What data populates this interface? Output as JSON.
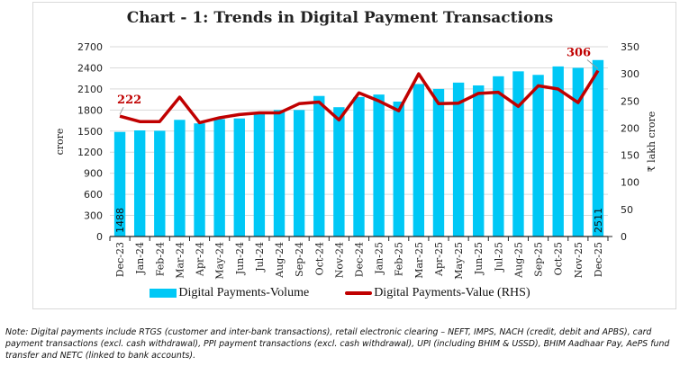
{
  "chart_data": {
    "type": "bar+line",
    "title": "Chart - 1: Trends in Digital Payment Transactions",
    "categories": [
      "Dec-23",
      "Jan-24",
      "Feb-24",
      "Mar-24",
      "Apr-24",
      "May-24",
      "Jun-24",
      "Jul-24",
      "Aug-24",
      "Sep-24",
      "Oct-24",
      "Nov-24",
      "Dec-24",
      "Jan-25",
      "Feb-25",
      "Mar-25",
      "Apr-25",
      "May-25",
      "Jun-25",
      "Jul-25",
      "Aug-25",
      "Sep-25",
      "Oct-25",
      "Nov-25",
      "Dec-25"
    ],
    "ylabel": "crore",
    "y2label": "₹ lakh crore",
    "ylim": [
      0,
      2700
    ],
    "y2lim": [
      0,
      350
    ],
    "yticks": [
      0,
      300,
      600,
      900,
      1200,
      1500,
      1800,
      2100,
      2400,
      2700
    ],
    "y2ticks": [
      0,
      50,
      100,
      150,
      200,
      250,
      300,
      350
    ],
    "grid": true,
    "legend_position": "bottom",
    "series": [
      {
        "name": "Digital Payments-Volume",
        "type": "bar",
        "axis": "left",
        "color": "#00c8f6",
        "values": [
          1488,
          1510,
          1505,
          1660,
          1610,
          1670,
          1680,
          1750,
          1800,
          1800,
          2000,
          1840,
          1985,
          2020,
          1920,
          2170,
          2100,
          2190,
          2150,
          2280,
          2350,
          2300,
          2420,
          2400,
          2511
        ]
      },
      {
        "name": "Digital Payments-Value (RHS)",
        "type": "line",
        "axis": "right",
        "color": "#c00000",
        "values": [
          222,
          212,
          212,
          257,
          210,
          219,
          225,
          228,
          228,
          245,
          248,
          215,
          265,
          250,
          232,
          300,
          245,
          246,
          264,
          266,
          240,
          278,
          272,
          247,
          306
        ]
      }
    ],
    "data_labels": {
      "first_bar": "1488",
      "last_bar": "2511",
      "first_line": "222",
      "last_line": "306"
    }
  },
  "note": {
    "label": "Note",
    "text": ": Digital payments include RTGS (customer and inter-bank transactions), retail electronic clearing – NEFT, IMPS, NACH (credit, debit and APBS), card payment transactions (excl. cash withdrawal), PPI payment transactions (excl. cash withdrawal), UPI (including BHIM & USSD), BHIM Aadhaar Pay, AePS fund transfer and NETC (linked to bank accounts)."
  }
}
